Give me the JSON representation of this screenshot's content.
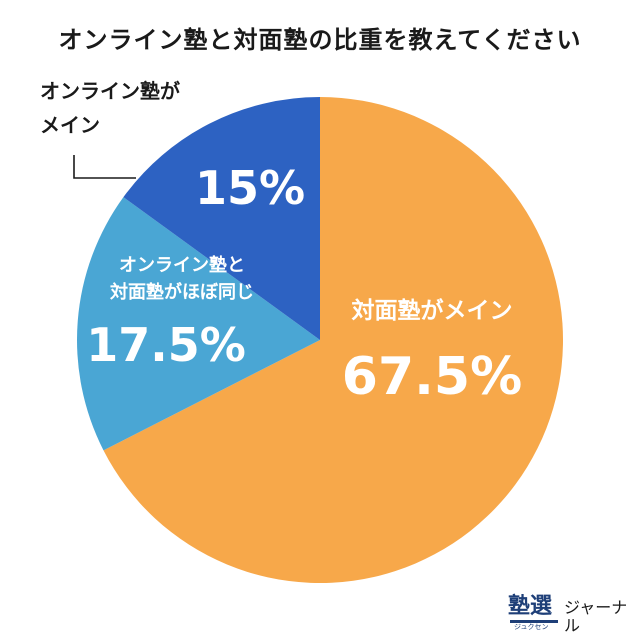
{
  "title": "オンライン塾と対面塾の比重を教えてください",
  "chart_data": {
    "type": "pie",
    "title": "オンライン塾と対面塾の比重を教えてください",
    "unit": "%",
    "slices": [
      {
        "label_lines": [
          "対面塾がメイン"
        ],
        "value": 67.5,
        "value_text": "67.5%",
        "color": "#f7a84a"
      },
      {
        "label_lines": [
          "オンライン塾と",
          "対面塾がほぼ同じ"
        ],
        "value": 17.5,
        "value_text": "17.5%",
        "color": "#4aa6d4"
      },
      {
        "label_lines": [
          "オンライン塾が",
          "メイン"
        ],
        "value": 15,
        "value_text": "15%",
        "color": "#2d62c2"
      }
    ]
  },
  "brand": {
    "logo_text": "塾選",
    "logo_reading": "ジュクセン",
    "name": "ジャーナル"
  }
}
